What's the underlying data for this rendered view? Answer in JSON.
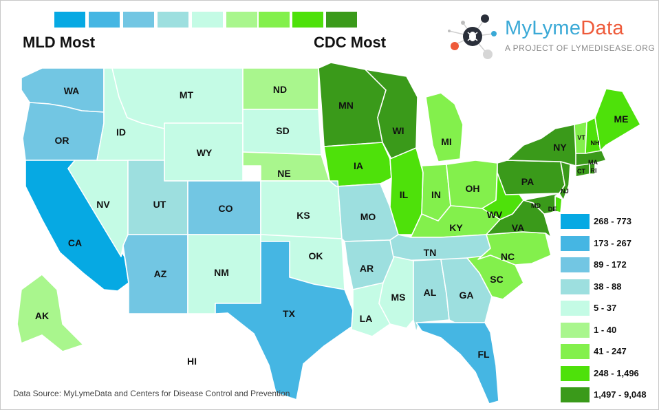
{
  "title_bar": {
    "left_label": "MLD Most",
    "right_label": "CDC Most",
    "scale_colors": [
      "#06a9e3",
      "#45b6e3",
      "#72c6e3",
      "#9ddfdf",
      "#c4fbe5",
      "#a9f68d",
      "#83f04c",
      "#4ee10a",
      "#3a9a1a"
    ]
  },
  "logo": {
    "brand_part1": "MyLyme",
    "brand_part2": "Data",
    "brand_part1_color": "#3aa9d6",
    "brand_part2_color": "#ee5a3a",
    "tagline": "A PROJECT OF LYMEDISEASE.ORG",
    "icon": "tick-network-icon"
  },
  "legend": [
    {
      "label": "268 - 773",
      "color": "#06a9e3"
    },
    {
      "label": "173 - 267",
      "color": "#45b6e3"
    },
    {
      "label": "89 - 172",
      "color": "#72c6e3"
    },
    {
      "label": "38 - 88",
      "color": "#9ddfdf"
    },
    {
      "label": "5 - 37",
      "color": "#c4fbe5"
    },
    {
      "label": "1 - 40",
      "color": "#a9f68d"
    },
    {
      "label": "41 - 247",
      "color": "#83f04c"
    },
    {
      "label": "248 - 1,496",
      "color": "#4ee10a"
    },
    {
      "label": "1,497 - 9,048",
      "color": "#3a9a1a"
    }
  ],
  "states": {
    "WA": {
      "label": "WA",
      "bucket": 2
    },
    "OR": {
      "label": "OR",
      "bucket": 2
    },
    "CA": {
      "label": "CA",
      "bucket": 0
    },
    "NV": {
      "label": "NV",
      "bucket": 4
    },
    "ID": {
      "label": "ID",
      "bucket": 4
    },
    "MT": {
      "label": "MT",
      "bucket": 4
    },
    "WY": {
      "label": "WY",
      "bucket": 4
    },
    "UT": {
      "label": "UT",
      "bucket": 3
    },
    "CO": {
      "label": "CO",
      "bucket": 2
    },
    "AZ": {
      "label": "AZ",
      "bucket": 2
    },
    "NM": {
      "label": "NM",
      "bucket": 4
    },
    "ND": {
      "label": "ND",
      "bucket": 5
    },
    "SD": {
      "label": "SD",
      "bucket": 4
    },
    "NE": {
      "label": "NE",
      "bucket": 5
    },
    "KS": {
      "label": "KS",
      "bucket": 4
    },
    "OK": {
      "label": "OK",
      "bucket": 4
    },
    "TX": {
      "label": "TX",
      "bucket": 1
    },
    "MN": {
      "label": "MN",
      "bucket": 8
    },
    "IA": {
      "label": "IA",
      "bucket": 7
    },
    "MO": {
      "label": "MO",
      "bucket": 3
    },
    "AR": {
      "label": "AR",
      "bucket": 3
    },
    "LA": {
      "label": "LA",
      "bucket": 4
    },
    "WI": {
      "label": "WI",
      "bucket": 8
    },
    "IL": {
      "label": "IL",
      "bucket": 7
    },
    "MI": {
      "label": "MI",
      "bucket": 6
    },
    "IN": {
      "label": "IN",
      "bucket": 6
    },
    "OH": {
      "label": "OH",
      "bucket": 6
    },
    "KY": {
      "label": "KY",
      "bucket": 6
    },
    "TN": {
      "label": "TN",
      "bucket": 3
    },
    "MS": {
      "label": "MS",
      "bucket": 4
    },
    "AL": {
      "label": "AL",
      "bucket": 3
    },
    "GA": {
      "label": "GA",
      "bucket": 3
    },
    "FL": {
      "label": "FL",
      "bucket": 1
    },
    "SC": {
      "label": "SC",
      "bucket": 6
    },
    "NC": {
      "label": "NC",
      "bucket": 6
    },
    "VA": {
      "label": "VA",
      "bucket": 8
    },
    "WV": {
      "label": "WV",
      "bucket": 7
    },
    "PA": {
      "label": "PA",
      "bucket": 8
    },
    "NY": {
      "label": "NY",
      "bucket": 8
    },
    "NJ": {
      "label": "NJ",
      "bucket": 8
    },
    "DE": {
      "label": "DE",
      "bucket": 7
    },
    "MD": {
      "label": "MD",
      "bucket": 8
    },
    "CT": {
      "label": "CT",
      "bucket": 8
    },
    "RI": {
      "label": "RI",
      "bucket": 8
    },
    "MA": {
      "label": "MA",
      "bucket": 8
    },
    "VT": {
      "label": "VT",
      "bucket": 6
    },
    "NH": {
      "label": "NH",
      "bucket": 7
    },
    "ME": {
      "label": "ME",
      "bucket": 7
    },
    "AK": {
      "label": "AK",
      "bucket": 5
    },
    "HI": {
      "label": "HI",
      "bucket": null
    }
  },
  "source": "Data Source: MyLymeData and Centers for Disease Control and Prevention"
}
